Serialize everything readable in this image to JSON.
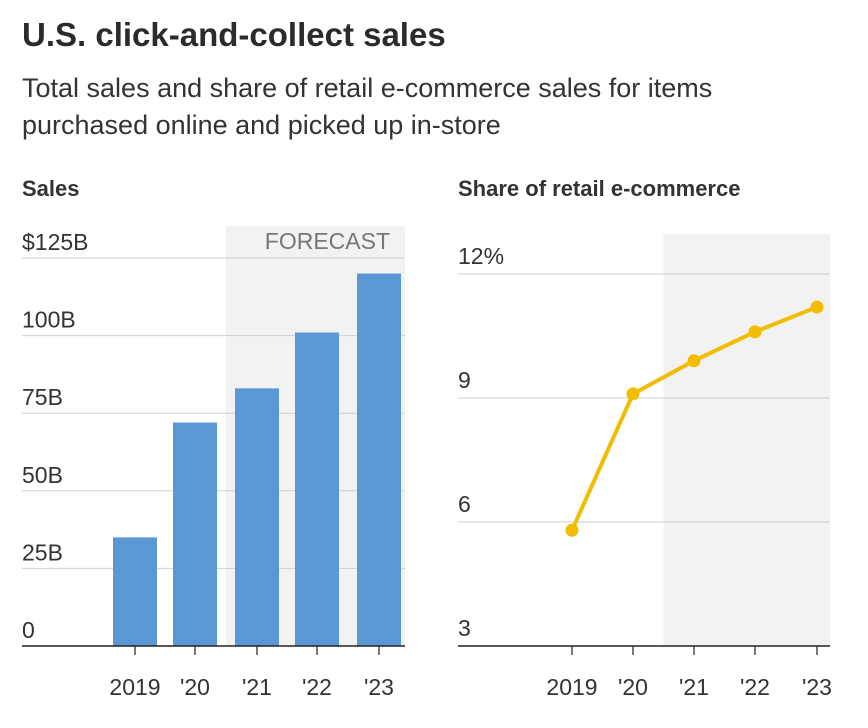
{
  "header": {
    "title": "U.S. click-and-collect sales",
    "subtitle": "Total sales and share of retail e-commerce sales for items purchased online and picked up in-store"
  },
  "colors": {
    "bar": "#5b97d5",
    "line": "#f2bd00",
    "forecast_shade": "#f2f2f2",
    "grid": "#cfcfcf"
  },
  "chart_data": [
    {
      "type": "bar",
      "title": "Sales",
      "categories": [
        "2019",
        "'20",
        "'21",
        "'22",
        "'23"
      ],
      "values": [
        35,
        72,
        83,
        101,
        120
      ],
      "ylim": [
        0,
        125
      ],
      "y_ticks": [
        0,
        25,
        50,
        75,
        100,
        125
      ],
      "y_tick_labels": [
        "0",
        "25B",
        "50B",
        "75B",
        "100B",
        "$125B"
      ],
      "forecast_start": "'21",
      "forecast_label": "FORECAST",
      "grid": true
    },
    {
      "type": "line",
      "title": "Share of retail e-commerce",
      "categories": [
        "2019",
        "'20",
        "'21",
        "'22",
        "'23"
      ],
      "values": [
        5.8,
        9.1,
        9.9,
        10.6,
        11.2
      ],
      "ylim": [
        3,
        12
      ],
      "y_ticks": [
        3,
        6,
        9,
        12
      ],
      "y_tick_labels": [
        "3",
        "6",
        "9",
        "12%"
      ],
      "forecast_start": "'21",
      "grid": true
    }
  ]
}
